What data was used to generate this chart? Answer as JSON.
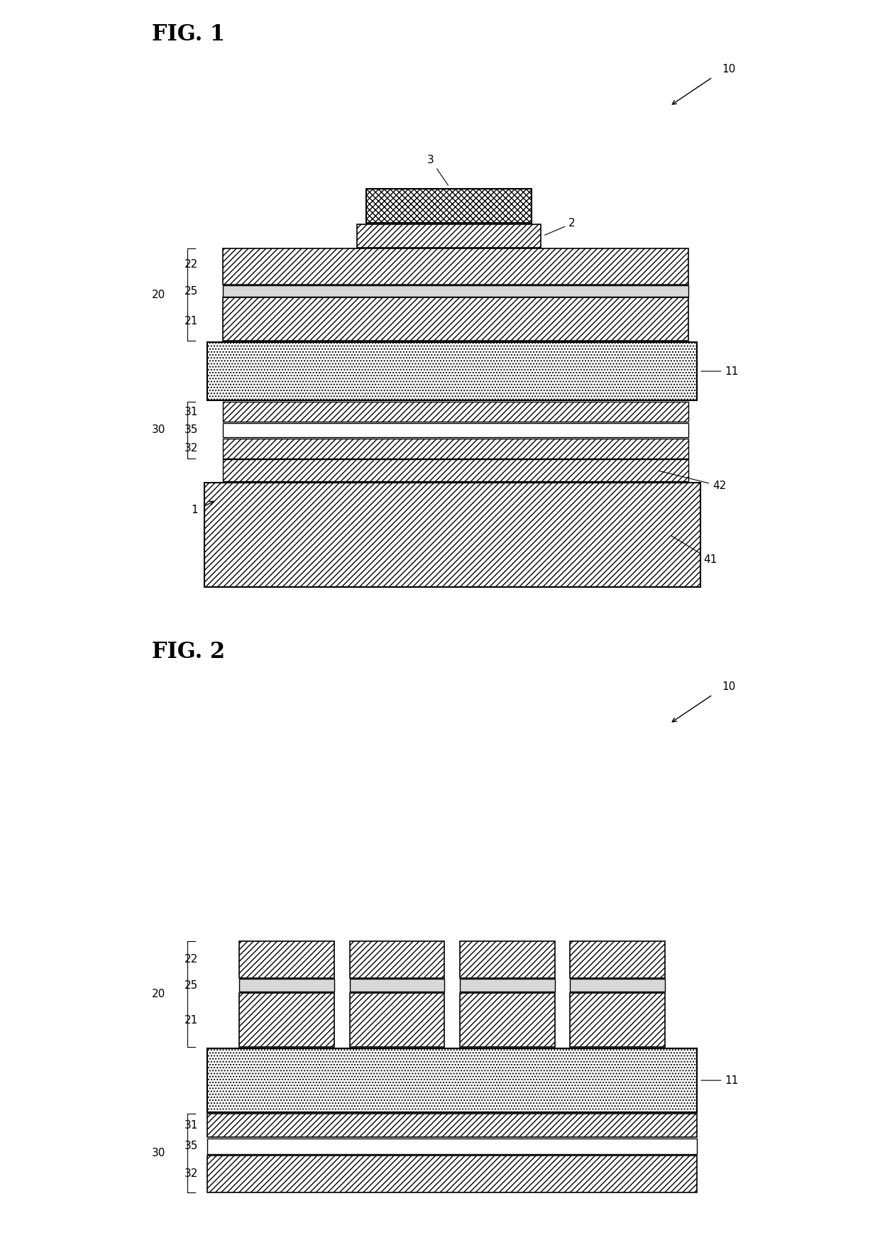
{
  "fig1_title": "FIG. 1",
  "fig2_title": "FIG. 2",
  "bg_color": "#ffffff",
  "line_color": "#000000",
  "hatch_diagonal": "////",
  "hatch_dots": "....",
  "layer_edge_color": "#000000",
  "layer_face_color": "#ffffff"
}
